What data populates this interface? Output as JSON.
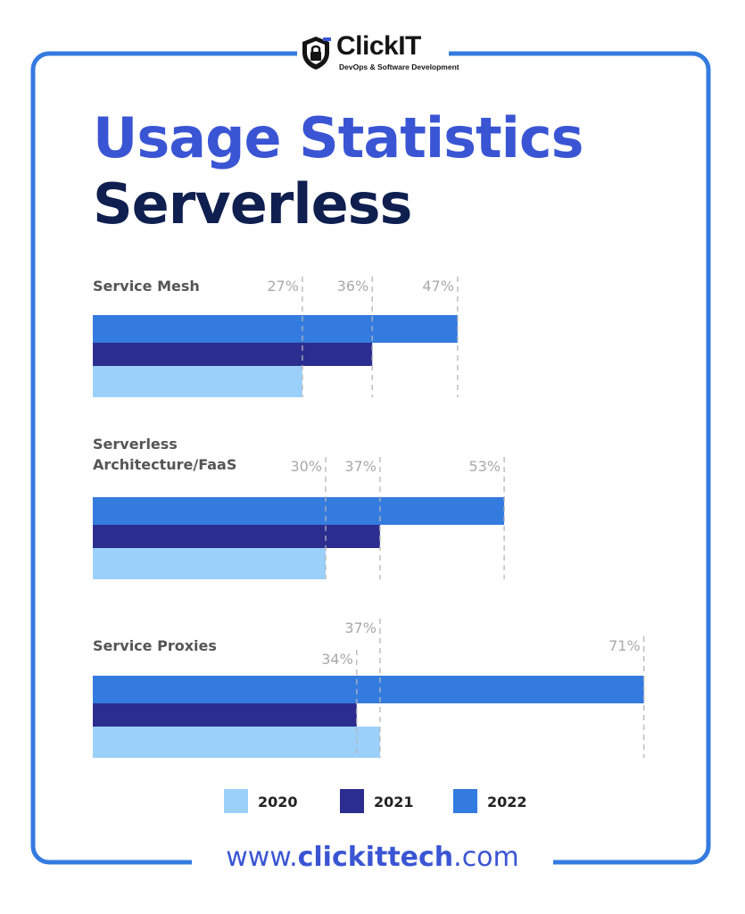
{
  "brand": {
    "name": "ClickIT",
    "tagline": "DevOps & Software Development"
  },
  "title": {
    "line1": "Usage Statistics",
    "line2": "Serverless"
  },
  "footer": {
    "prefix": "www.",
    "domain": "clickittech",
    "suffix": ".com"
  },
  "colors": {
    "2020": "#9bd0fb",
    "2021": "#2b2e8f",
    "2022": "#347be0",
    "frame": "#347be0",
    "label": "#555555",
    "pct": "#a9a9a9"
  },
  "chart_data": {
    "type": "bar",
    "orientation": "horizontal",
    "categories": [
      "Service Mesh",
      "Serverless\nArchitecture/FaaS",
      "Service Proxies"
    ],
    "series": [
      {
        "name": "2020",
        "values": [
          27,
          30,
          37
        ]
      },
      {
        "name": "2021",
        "values": [
          36,
          37,
          34
        ]
      },
      {
        "name": "2022",
        "values": [
          47,
          53,
          71
        ]
      }
    ],
    "value_labels": [
      [
        "27%",
        "36%",
        "47%"
      ],
      [
        "30%",
        "37%",
        "53%"
      ],
      [
        "37%",
        "34%",
        "71%"
      ]
    ],
    "unit": "%",
    "legend": [
      "2020",
      "2021",
      "2022"
    ],
    "legend_position": "bottom"
  }
}
